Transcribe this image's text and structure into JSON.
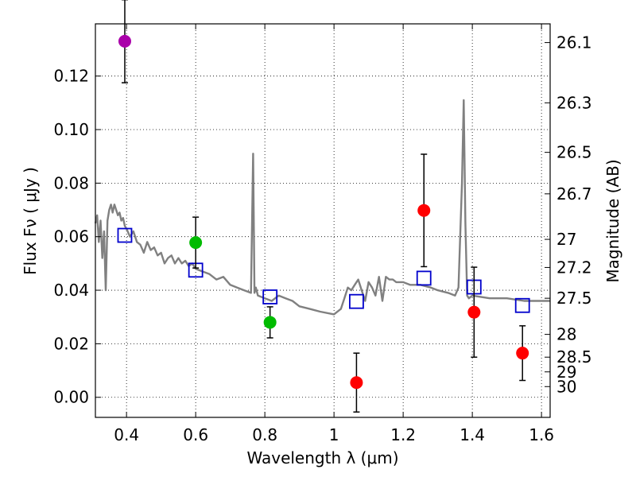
{
  "chart_data": {
    "type": "scatter",
    "title": "",
    "xlabel": "Wavelength  λ (μm)",
    "ylabel": "Flux  Fν  ( μJy )",
    "ylabel_right": "Magnitude (AB)",
    "xlim": [
      0.31,
      1.625
    ],
    "ylim": [
      -0.0075,
      0.1395
    ],
    "grid": true,
    "x_ticks": [
      0.4,
      0.6,
      0.8,
      1.0,
      1.2,
      1.4,
      1.6
    ],
    "x_tick_labels": [
      "0.4",
      "0.6",
      "0.8",
      "1",
      "1.2",
      "1.4",
      "1.6"
    ],
    "y_ticks": [
      0.0,
      0.02,
      0.04,
      0.06,
      0.08,
      0.1,
      0.12
    ],
    "y_tick_labels": [
      "0.00",
      "0.02",
      "0.04",
      "0.06",
      "0.08",
      "0.10",
      "0.12"
    ],
    "right_axis": {
      "labels": [
        "26.1",
        "26.3",
        "26.5",
        "26.7",
        "27",
        "27.2",
        "27.5",
        "28",
        "28.5",
        "29",
        "30"
      ],
      "flux_positions": [
        0.1325,
        0.11,
        0.0915,
        0.076,
        0.059,
        0.0485,
        0.037,
        0.0235,
        0.015,
        0.0095,
        0.004
      ]
    },
    "series": [
      {
        "name": "model-spectrum",
        "kind": "line",
        "color": "#808080",
        "x": [
          0.31,
          0.315,
          0.32,
          0.325,
          0.33,
          0.335,
          0.34,
          0.345,
          0.35,
          0.355,
          0.36,
          0.365,
          0.37,
          0.375,
          0.38,
          0.385,
          0.39,
          0.395,
          0.4,
          0.41,
          0.42,
          0.43,
          0.44,
          0.45,
          0.46,
          0.47,
          0.48,
          0.49,
          0.5,
          0.51,
          0.52,
          0.53,
          0.54,
          0.55,
          0.56,
          0.57,
          0.58,
          0.59,
          0.6,
          0.62,
          0.64,
          0.66,
          0.68,
          0.7,
          0.72,
          0.74,
          0.76,
          0.766,
          0.77,
          0.774,
          0.78,
          0.8,
          0.82,
          0.84,
          0.86,
          0.88,
          0.9,
          0.93,
          0.96,
          1.0,
          1.02,
          1.03,
          1.04,
          1.05,
          1.06,
          1.07,
          1.08,
          1.09,
          1.1,
          1.11,
          1.12,
          1.13,
          1.14,
          1.15,
          1.16,
          1.17,
          1.18,
          1.2,
          1.22,
          1.25,
          1.28,
          1.3,
          1.33,
          1.35,
          1.36,
          1.37,
          1.375,
          1.38,
          1.385,
          1.39,
          1.4,
          1.45,
          1.5,
          1.55,
          1.6,
          1.625
        ],
        "y": [
          0.065,
          0.068,
          0.058,
          0.066,
          0.052,
          0.062,
          0.04,
          0.066,
          0.07,
          0.072,
          0.069,
          0.072,
          0.07,
          0.068,
          0.069,
          0.066,
          0.067,
          0.064,
          0.063,
          0.06,
          0.062,
          0.058,
          0.057,
          0.054,
          0.058,
          0.055,
          0.056,
          0.053,
          0.054,
          0.05,
          0.052,
          0.053,
          0.05,
          0.052,
          0.05,
          0.051,
          0.049,
          0.05,
          0.048,
          0.047,
          0.046,
          0.044,
          0.045,
          0.042,
          0.041,
          0.04,
          0.039,
          0.091,
          0.039,
          0.041,
          0.038,
          0.037,
          0.036,
          0.038,
          0.037,
          0.036,
          0.034,
          0.033,
          0.032,
          0.031,
          0.033,
          0.037,
          0.041,
          0.04,
          0.042,
          0.044,
          0.04,
          0.036,
          0.043,
          0.041,
          0.038,
          0.045,
          0.036,
          0.045,
          0.044,
          0.044,
          0.043,
          0.043,
          0.042,
          0.042,
          0.041,
          0.04,
          0.039,
          0.038,
          0.041,
          0.08,
          0.111,
          0.065,
          0.038,
          0.037,
          0.038,
          0.037,
          0.037,
          0.036,
          0.036,
          0.036
        ]
      },
      {
        "name": "model-photometry",
        "kind": "open-square",
        "color": "#0000cc",
        "x": [
          0.395,
          0.6,
          0.815,
          1.065,
          1.26,
          1.405,
          1.545
        ],
        "y": [
          0.0605,
          0.0475,
          0.0375,
          0.0358,
          0.0445,
          0.0412,
          0.0343
        ]
      },
      {
        "name": "observed",
        "kind": "dot-errorbar",
        "x": [
          0.395,
          0.6,
          0.815,
          1.065,
          1.26,
          1.405,
          1.545
        ],
        "y": [
          0.133,
          0.0578,
          0.028,
          0.0055,
          0.0698,
          0.0318,
          0.0165
        ],
        "err": [
          0.0155,
          0.0095,
          0.0058,
          0.011,
          0.021,
          0.0168,
          0.0102
        ],
        "colors": [
          "#aa00aa",
          "#00bb00",
          "#00bb00",
          "#ff0000",
          "#ff0000",
          "#ff0000",
          "#ff0000"
        ]
      }
    ]
  }
}
